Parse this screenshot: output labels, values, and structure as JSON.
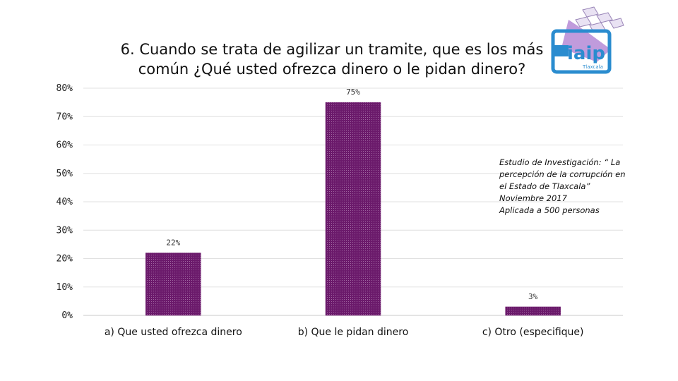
{
  "chart_data": {
    "type": "bar",
    "title_line1": "6. Cuando se trata de agilizar un tramite, que es los más",
    "title_line2": "común ¿Qué usted ofrezca dinero o le pidan dinero?",
    "categories": [
      "a) Que usted ofrezca dinero",
      "b) Que le pidan dinero",
      "c) Otro (especifique)"
    ],
    "values": [
      22,
      75,
      3
    ],
    "data_labels": [
      "22%",
      "75%",
      "3%"
    ],
    "ylim": [
      0,
      80
    ],
    "yticks": [
      0,
      10,
      20,
      30,
      40,
      50,
      60,
      70,
      80
    ],
    "ytick_labels": [
      "0%",
      "10%",
      "20%",
      "30%",
      "40%",
      "50%",
      "60%",
      "70%",
      "80%"
    ],
    "grid": true,
    "bar_color": "#6b1a6b",
    "xlabel": "",
    "ylabel": ""
  },
  "note": {
    "lines": [
      "Estudio de Investigación: “ La",
      "percepción de la corrupción en",
      "el Estado de Tlaxcala”",
      "Noviembre 2017",
      "Aplicada a 500 personas"
    ]
  },
  "logo": {
    "text": "iaip",
    "subtext": "Tlaxcala",
    "color": "#2a8ccf",
    "accent": "#b58ad6"
  }
}
